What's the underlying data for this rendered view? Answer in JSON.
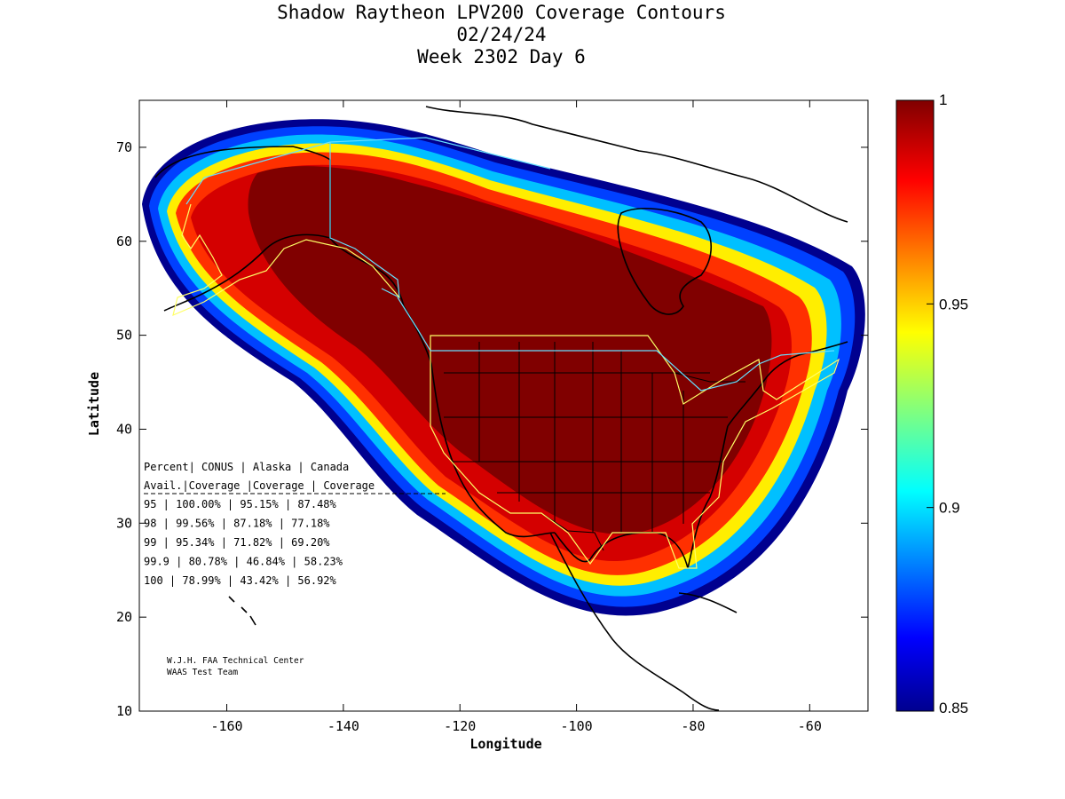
{
  "title": {
    "line1": "Shadow Raytheon LPV200 Coverage Contours",
    "line2": "02/24/24",
    "line3": "Week 2302 Day 6"
  },
  "axes": {
    "xlabel": "Longitude",
    "ylabel": "Latitude",
    "xticks": [
      "-160",
      "-140",
      "-120",
      "-100",
      "-80",
      "-60"
    ],
    "yticks": [
      "70",
      "60",
      "50",
      "40",
      "30",
      "20",
      "10"
    ],
    "xlim": [
      -175,
      -50
    ],
    "ylim": [
      10,
      75
    ]
  },
  "colorbar": {
    "min_label": "0.85",
    "labels": [
      "1",
      "0.95",
      "0.9",
      "0.85"
    ],
    "range": [
      0.85,
      1.0
    ],
    "colormap": "jet"
  },
  "coverage_table": {
    "header1": [
      "Percent",
      "CONUS",
      "Alaska",
      "Canada"
    ],
    "header2": [
      "Avail.",
      "Coverage",
      "Coverage",
      "Coverage"
    ],
    "rows": [
      {
        "avail": "95",
        "conus": "100.00%",
        "alaska": "95.15%",
        "canada": "87.48%"
      },
      {
        "avail": "98",
        "conus": "99.56%",
        "alaska": "87.18%",
        "canada": "77.18%"
      },
      {
        "avail": "99",
        "conus": "95.34%",
        "alaska": "71.82%",
        "canada": "69.20%"
      },
      {
        "avail": "99.9",
        "conus": "80.78%",
        "alaska": "46.84%",
        "canada": "58.23%"
      },
      {
        "avail": "100",
        "conus": "78.99%",
        "alaska": "43.42%",
        "canada": "56.92%"
      }
    ]
  },
  "credit": {
    "line1": "W.J.H. FAA Technical Center",
    "line2": "WAAS Test Team"
  },
  "colors": {
    "full_coverage": "#800000",
    "service_boundary": "#ffff66",
    "alaska_boundary": "#66e0ff",
    "coastline": "#000000"
  }
}
